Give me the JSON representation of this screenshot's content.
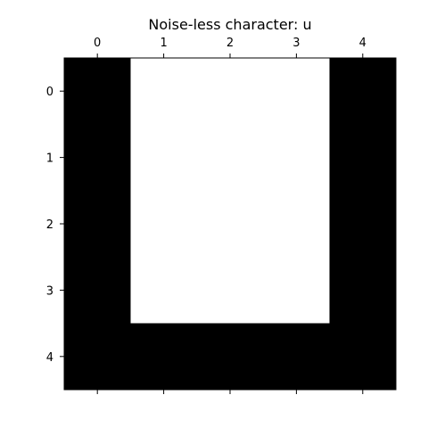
{
  "chart_data": {
    "type": "heatmap",
    "title": "Noise-less character: u",
    "xlabel": "",
    "ylabel": "",
    "x_ticks": [
      "0",
      "1",
      "2",
      "3",
      "4"
    ],
    "y_ticks": [
      "0",
      "1",
      "2",
      "3",
      "4"
    ],
    "x_axis_position": "top",
    "y_origin": "top",
    "grid": false,
    "colormap": "gray",
    "cell_value_colors": {
      "0": "#000000",
      "1": "#ffffff"
    },
    "values": [
      [
        0,
        1,
        1,
        1,
        0
      ],
      [
        0,
        1,
        1,
        1,
        0
      ],
      [
        0,
        1,
        1,
        1,
        0
      ],
      [
        0,
        1,
        1,
        1,
        0
      ],
      [
        0,
        0,
        0,
        0,
        0
      ]
    ]
  }
}
